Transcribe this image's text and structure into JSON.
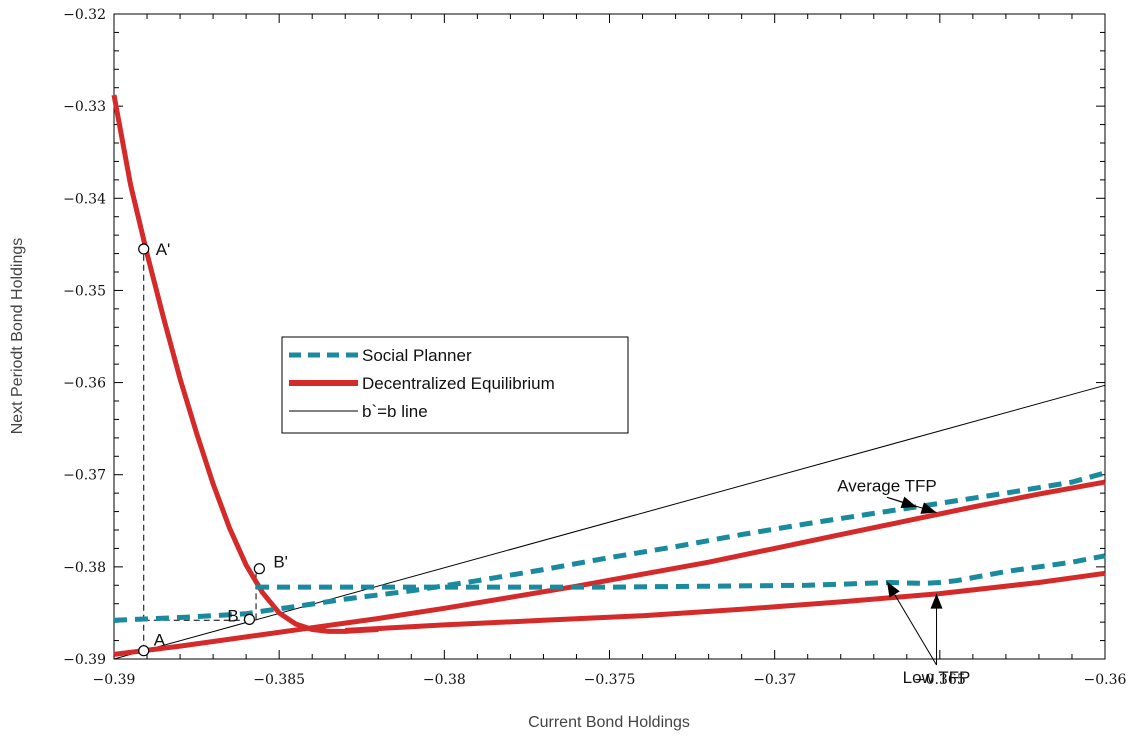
{
  "chart_data": {
    "type": "line",
    "title": "",
    "xlabel": "Current Bond Holdings",
    "ylabel": "Next Periodt Bond Holdings",
    "xlim": [
      -0.39,
      -0.36
    ],
    "ylim": [
      -0.39,
      -0.32
    ],
    "xticks": [
      -0.39,
      -0.385,
      -0.38,
      -0.375,
      -0.37,
      -0.365,
      -0.36
    ],
    "xtick_labels": [
      "−0.39",
      "−0.385",
      "−0.38",
      "−0.375",
      "−0.37",
      "−0.365",
      "−0.36"
    ],
    "yticks": [
      -0.32,
      -0.33,
      -0.34,
      -0.35,
      -0.36,
      -0.37,
      -0.38,
      -0.39
    ],
    "ytick_labels": [
      "−0.32",
      "−0.33",
      "−0.34",
      "−0.35",
      "−0.36",
      "−0.37",
      "−0.38",
      "−0.39"
    ],
    "legend_position": "center-left",
    "legend_colors": {
      "social_planner": "#1a8a9e",
      "decentralized": "#d42a2a",
      "line45": "#000000"
    },
    "series": [
      {
        "name": "Social Planner",
        "style": "dashed",
        "color": "#1a8a9e",
        "x": [
          -0.39,
          -0.388,
          -0.386,
          -0.3855,
          -0.3845,
          -0.383,
          -0.381,
          -0.379,
          -0.377,
          -0.375,
          -0.373,
          -0.371,
          -0.369,
          -0.367,
          -0.365,
          -0.363,
          -0.361,
          -0.36
        ],
        "y": [
          -0.3858,
          -0.3855,
          -0.3851,
          -0.3848,
          -0.3843,
          -0.3835,
          -0.3826,
          -0.3815,
          -0.3803,
          -0.379,
          -0.3778,
          -0.3765,
          -0.3753,
          -0.3742,
          -0.3731,
          -0.372,
          -0.3708,
          -0.3698
        ]
      },
      {
        "name": "",
        "style": "dashed",
        "color": "#1a8a9e",
        "x": [
          -0.3857,
          -0.384,
          -0.381,
          -0.378,
          -0.375,
          -0.372,
          -0.369,
          -0.3665,
          -0.3655,
          -0.365,
          -0.3645,
          -0.363,
          -0.361,
          -0.36
        ],
        "y": [
          -0.3822,
          -0.3822,
          -0.3822,
          -0.3822,
          -0.3822,
          -0.3821,
          -0.382,
          -0.3817,
          -0.3818,
          -0.3817,
          -0.3815,
          -0.3805,
          -0.3795,
          -0.3788
        ]
      },
      {
        "name": "Decentralized Equilibrium",
        "style": "solid",
        "color": "#d42a2a",
        "x": [
          -0.39,
          -0.3895,
          -0.389,
          -0.3885,
          -0.388,
          -0.3875,
          -0.387,
          -0.3865,
          -0.386,
          -0.3855,
          -0.385,
          -0.3845,
          -0.384,
          -0.3835,
          -0.383,
          -0.3825,
          -0.382
        ],
        "y": [
          -0.3288,
          -0.3385,
          -0.346,
          -0.353,
          -0.3596,
          -0.3655,
          -0.371,
          -0.3758,
          -0.3798,
          -0.3828,
          -0.385,
          -0.3862,
          -0.3868,
          -0.387,
          -0.387,
          -0.3869,
          -0.3868
        ]
      },
      {
        "name": "",
        "style": "solid",
        "color": "#d42a2a",
        "x": [
          -0.39,
          -0.388,
          -0.386,
          -0.384,
          -0.382,
          -0.38,
          -0.378,
          -0.376,
          -0.374,
          -0.372,
          -0.37,
          -0.368,
          -0.366,
          -0.364,
          -0.362,
          -0.36
        ],
        "y": [
          -0.3895,
          -0.3886,
          -0.3876,
          -0.3866,
          -0.3856,
          -0.3845,
          -0.3833,
          -0.3821,
          -0.3808,
          -0.3795,
          -0.378,
          -0.3765,
          -0.375,
          -0.3735,
          -0.3721,
          -0.3708
        ]
      },
      {
        "name": "",
        "style": "solid",
        "color": "#d42a2a",
        "x": [
          -0.383,
          -0.38,
          -0.377,
          -0.374,
          -0.371,
          -0.368,
          -0.365,
          -0.362,
          -0.36
        ],
        "y": [
          -0.3869,
          -0.3863,
          -0.3858,
          -0.3853,
          -0.3846,
          -0.3838,
          -0.3829,
          -0.3817,
          -0.3807
        ]
      },
      {
        "name": "b`=b line",
        "style": "thin",
        "color": "#000000",
        "x": [
          -0.39,
          -0.36
        ],
        "y": [
          -0.39,
          -0.3603
        ]
      }
    ],
    "points": [
      {
        "label": "A'",
        "x": -0.3891,
        "y": -0.3455
      },
      {
        "label": "B'",
        "x": -0.3856,
        "y": -0.3802
      },
      {
        "label": "B",
        "x": -0.3859,
        "y": -0.3857
      },
      {
        "label": "A",
        "x": -0.3891,
        "y": -0.3891
      }
    ],
    "guides": [
      {
        "from": [
          -0.3891,
          -0.3891
        ],
        "to": [
          -0.3891,
          -0.3455
        ]
      },
      {
        "from": [
          -0.3891,
          -0.3858
        ],
        "to": [
          -0.3859,
          -0.3858
        ]
      },
      {
        "from": [
          -0.3857,
          -0.3857
        ],
        "to": [
          -0.3857,
          -0.3802
        ]
      }
    ],
    "annotations": [
      {
        "text": "Average TFP",
        "anchor": [
          -0.3666,
          -0.3718
        ],
        "arrows": [
          [
            -0.3657,
            -0.3735
          ],
          [
            -0.3651,
            -0.3741
          ]
        ]
      },
      {
        "text": "Low TFP",
        "anchor": [
          -0.3651,
          -0.3926
        ],
        "arrows": [
          [
            -0.3666,
            -0.3816
          ],
          [
            -0.3651,
            -0.3829
          ]
        ]
      }
    ]
  }
}
